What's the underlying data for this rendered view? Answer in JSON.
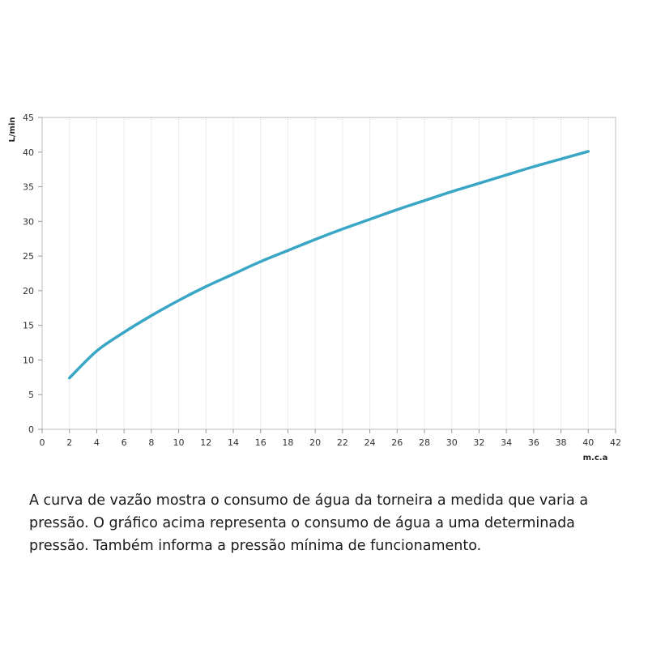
{
  "chart_data": {
    "type": "line",
    "title": "",
    "xlabel": "m.c.a",
    "ylabel": "L/min",
    "xlim": [
      0,
      42
    ],
    "ylim": [
      0,
      45
    ],
    "x_ticks": [
      0,
      2,
      4,
      6,
      8,
      10,
      12,
      14,
      16,
      18,
      20,
      22,
      24,
      26,
      28,
      30,
      32,
      34,
      36,
      38,
      40,
      42
    ],
    "y_ticks": [
      0,
      5,
      10,
      15,
      20,
      25,
      30,
      35,
      40,
      45
    ],
    "grid": "vertical",
    "series": [
      {
        "x": [
          2,
          4,
          6,
          8,
          10,
          12,
          14,
          16,
          18,
          20,
          22,
          24,
          26,
          28,
          30,
          32,
          34,
          36,
          38,
          40
        ],
        "y": [
          7.4,
          11.3,
          14.0,
          16.4,
          18.6,
          20.6,
          22.4,
          24.2,
          25.8,
          27.4,
          28.9,
          30.3,
          31.7,
          33.0,
          34.3,
          35.5,
          36.7,
          37.9,
          39.0,
          40.1
        ],
        "color": "#3aa6c6"
      }
    ]
  },
  "caption": "A curva de vazão mostra o consumo de água da torneira a medida que varia a pressão. O gráfico acima representa o consumo de água a uma determinada pressão. Também informa a pressão mínima de funcionamento."
}
